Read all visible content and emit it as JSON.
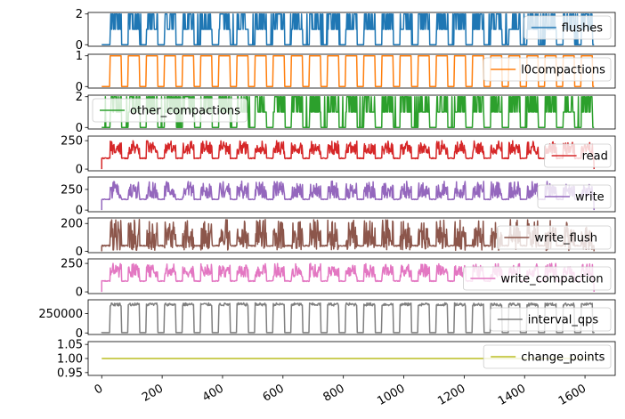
{
  "chart_data": {
    "type": "line",
    "layout": "stacked-subplots-shared-x",
    "xlim": [
      -45,
      1700
    ],
    "x_ticks": [
      0,
      200,
      400,
      600,
      800,
      1000,
      1200,
      1400,
      1600
    ],
    "x_tick_labels": [
      "0",
      "200",
      "400",
      "600",
      "800",
      "1000",
      "1200",
      "1400",
      "1600"
    ],
    "x_tick_rotation": 30,
    "x_data_range": [
      0,
      1630
    ],
    "series": [
      {
        "name": "flushes",
        "color": "#1f77b4",
        "ylim": [
          -0.1,
          2.1
        ],
        "y_ticks": [
          0,
          2
        ],
        "y_tick_labels": [
          "0",
          "2"
        ],
        "legend_position": "top-right",
        "pattern": "rapid-oscillation",
        "range": [
          0,
          2
        ],
        "busy_level": 1,
        "idle_level": 0
      },
      {
        "name": "l0compactions",
        "color": "#ff7f0e",
        "ylim": [
          -0.05,
          1.05
        ],
        "y_ticks": [
          0,
          1
        ],
        "y_tick_labels": [
          "0",
          "1"
        ],
        "legend_position": "top-right",
        "pattern": "square-wave",
        "range": [
          0,
          1
        ],
        "busy_level": 1,
        "idle_level": 0
      },
      {
        "name": "other_compactions",
        "color": "#2ca02c",
        "ylim": [
          -0.1,
          2.1
        ],
        "y_ticks": [
          0,
          2
        ],
        "y_tick_labels": [
          "0",
          "2"
        ],
        "legend_position": "top-left",
        "pattern": "dense-fill",
        "range": [
          0,
          2
        ],
        "busy_level": 1,
        "idle_level": 0
      },
      {
        "name": "read",
        "color": "#d62728",
        "ylim": [
          -15,
          290
        ],
        "y_ticks": [
          0,
          250
        ],
        "y_tick_labels": [
          "0",
          "250"
        ],
        "legend_position": "bottom-right",
        "pattern": "noisy-bursts",
        "range": [
          0,
          250
        ],
        "busy_level": 175,
        "idle_level": 95
      },
      {
        "name": "write",
        "color": "#9467bd",
        "ylim": [
          -20,
          400
        ],
        "y_ticks": [
          0,
          250
        ],
        "y_tick_labels": [
          "0",
          "250"
        ],
        "legend_position": "bottom-right",
        "pattern": "noisy-bursts",
        "range": [
          0,
          350
        ],
        "busy_level": 220,
        "idle_level": 130
      },
      {
        "name": "write_flush",
        "color": "#8c564b",
        "ylim": [
          -10,
          240
        ],
        "y_ticks": [
          0,
          200
        ],
        "y_tick_labels": [
          "0",
          "200"
        ],
        "legend_position": "bottom-right",
        "pattern": "noisy-bursts",
        "range": [
          0,
          230
        ],
        "busy_level": 90,
        "idle_level": 40
      },
      {
        "name": "write_compaction",
        "color": "#e377c2",
        "ylim": [
          -15,
          290
        ],
        "y_ticks": [
          0,
          250
        ],
        "y_tick_labels": [
          "0",
          "250"
        ],
        "legend_position": "bottom-right",
        "pattern": "noisy-bursts",
        "range": [
          0,
          250
        ],
        "busy_level": 175,
        "idle_level": 95
      },
      {
        "name": "interval_qps",
        "color": "#7f7f7f",
        "ylim": [
          -20000,
          430000
        ],
        "y_ticks": [
          0,
          250000
        ],
        "y_tick_labels": [
          "0",
          "250000"
        ],
        "legend_position": "bottom-right",
        "pattern": "square-wave",
        "range": [
          0,
          400000
        ],
        "busy_level": 370000,
        "idle_level": 5000
      },
      {
        "name": "change_points",
        "color": "#bcbd22",
        "ylim": [
          0.94,
          1.06
        ],
        "y_ticks": [
          0.95,
          1.0,
          1.05
        ],
        "y_tick_labels": [
          "0.95",
          "1.00",
          "1.05"
        ],
        "legend_position": "top-right",
        "pattern": "constant",
        "range": [
          1.0,
          1.0
        ],
        "busy_level": 1.0,
        "idle_level": 1.0
      }
    ],
    "grid": false,
    "title": "",
    "xlabel": "",
    "ylabel": ""
  }
}
